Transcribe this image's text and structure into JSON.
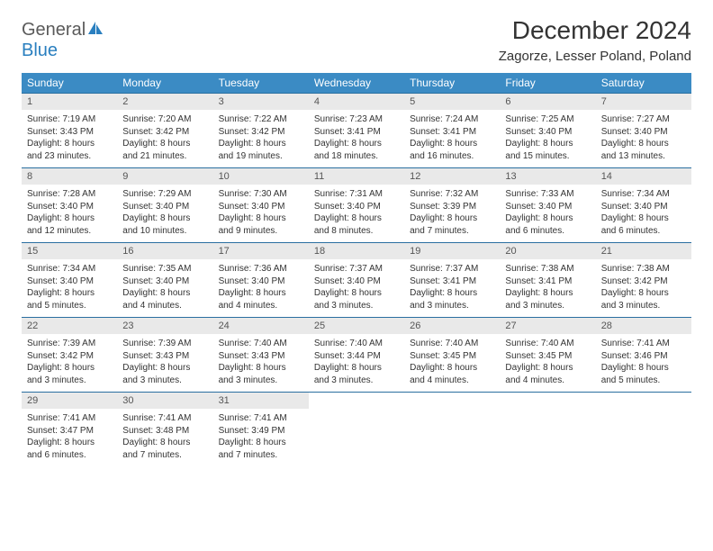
{
  "brand": {
    "part1": "General",
    "part2": "Blue"
  },
  "title": "December 2024",
  "location": "Zagorze, Lesser Poland, Poland",
  "header_bg": "#3b8bc4",
  "daynum_bg": "#e9e9e9",
  "divider_color": "#2a6fa0",
  "day_headers": [
    "Sunday",
    "Monday",
    "Tuesday",
    "Wednesday",
    "Thursday",
    "Friday",
    "Saturday"
  ],
  "weeks": [
    {
      "nums": [
        "1",
        "2",
        "3",
        "4",
        "5",
        "6",
        "7"
      ],
      "cells": [
        {
          "sunrise": "Sunrise: 7:19 AM",
          "sunset": "Sunset: 3:43 PM",
          "day1": "Daylight: 8 hours",
          "day2": "and 23 minutes."
        },
        {
          "sunrise": "Sunrise: 7:20 AM",
          "sunset": "Sunset: 3:42 PM",
          "day1": "Daylight: 8 hours",
          "day2": "and 21 minutes."
        },
        {
          "sunrise": "Sunrise: 7:22 AM",
          "sunset": "Sunset: 3:42 PM",
          "day1": "Daylight: 8 hours",
          "day2": "and 19 minutes."
        },
        {
          "sunrise": "Sunrise: 7:23 AM",
          "sunset": "Sunset: 3:41 PM",
          "day1": "Daylight: 8 hours",
          "day2": "and 18 minutes."
        },
        {
          "sunrise": "Sunrise: 7:24 AM",
          "sunset": "Sunset: 3:41 PM",
          "day1": "Daylight: 8 hours",
          "day2": "and 16 minutes."
        },
        {
          "sunrise": "Sunrise: 7:25 AM",
          "sunset": "Sunset: 3:40 PM",
          "day1": "Daylight: 8 hours",
          "day2": "and 15 minutes."
        },
        {
          "sunrise": "Sunrise: 7:27 AM",
          "sunset": "Sunset: 3:40 PM",
          "day1": "Daylight: 8 hours",
          "day2": "and 13 minutes."
        }
      ]
    },
    {
      "nums": [
        "8",
        "9",
        "10",
        "11",
        "12",
        "13",
        "14"
      ],
      "cells": [
        {
          "sunrise": "Sunrise: 7:28 AM",
          "sunset": "Sunset: 3:40 PM",
          "day1": "Daylight: 8 hours",
          "day2": "and 12 minutes."
        },
        {
          "sunrise": "Sunrise: 7:29 AM",
          "sunset": "Sunset: 3:40 PM",
          "day1": "Daylight: 8 hours",
          "day2": "and 10 minutes."
        },
        {
          "sunrise": "Sunrise: 7:30 AM",
          "sunset": "Sunset: 3:40 PM",
          "day1": "Daylight: 8 hours",
          "day2": "and 9 minutes."
        },
        {
          "sunrise": "Sunrise: 7:31 AM",
          "sunset": "Sunset: 3:40 PM",
          "day1": "Daylight: 8 hours",
          "day2": "and 8 minutes."
        },
        {
          "sunrise": "Sunrise: 7:32 AM",
          "sunset": "Sunset: 3:39 PM",
          "day1": "Daylight: 8 hours",
          "day2": "and 7 minutes."
        },
        {
          "sunrise": "Sunrise: 7:33 AM",
          "sunset": "Sunset: 3:40 PM",
          "day1": "Daylight: 8 hours",
          "day2": "and 6 minutes."
        },
        {
          "sunrise": "Sunrise: 7:34 AM",
          "sunset": "Sunset: 3:40 PM",
          "day1": "Daylight: 8 hours",
          "day2": "and 6 minutes."
        }
      ]
    },
    {
      "nums": [
        "15",
        "16",
        "17",
        "18",
        "19",
        "20",
        "21"
      ],
      "cells": [
        {
          "sunrise": "Sunrise: 7:34 AM",
          "sunset": "Sunset: 3:40 PM",
          "day1": "Daylight: 8 hours",
          "day2": "and 5 minutes."
        },
        {
          "sunrise": "Sunrise: 7:35 AM",
          "sunset": "Sunset: 3:40 PM",
          "day1": "Daylight: 8 hours",
          "day2": "and 4 minutes."
        },
        {
          "sunrise": "Sunrise: 7:36 AM",
          "sunset": "Sunset: 3:40 PM",
          "day1": "Daylight: 8 hours",
          "day2": "and 4 minutes."
        },
        {
          "sunrise": "Sunrise: 7:37 AM",
          "sunset": "Sunset: 3:40 PM",
          "day1": "Daylight: 8 hours",
          "day2": "and 3 minutes."
        },
        {
          "sunrise": "Sunrise: 7:37 AM",
          "sunset": "Sunset: 3:41 PM",
          "day1": "Daylight: 8 hours",
          "day2": "and 3 minutes."
        },
        {
          "sunrise": "Sunrise: 7:38 AM",
          "sunset": "Sunset: 3:41 PM",
          "day1": "Daylight: 8 hours",
          "day2": "and 3 minutes."
        },
        {
          "sunrise": "Sunrise: 7:38 AM",
          "sunset": "Sunset: 3:42 PM",
          "day1": "Daylight: 8 hours",
          "day2": "and 3 minutes."
        }
      ]
    },
    {
      "nums": [
        "22",
        "23",
        "24",
        "25",
        "26",
        "27",
        "28"
      ],
      "cells": [
        {
          "sunrise": "Sunrise: 7:39 AM",
          "sunset": "Sunset: 3:42 PM",
          "day1": "Daylight: 8 hours",
          "day2": "and 3 minutes."
        },
        {
          "sunrise": "Sunrise: 7:39 AM",
          "sunset": "Sunset: 3:43 PM",
          "day1": "Daylight: 8 hours",
          "day2": "and 3 minutes."
        },
        {
          "sunrise": "Sunrise: 7:40 AM",
          "sunset": "Sunset: 3:43 PM",
          "day1": "Daylight: 8 hours",
          "day2": "and 3 minutes."
        },
        {
          "sunrise": "Sunrise: 7:40 AM",
          "sunset": "Sunset: 3:44 PM",
          "day1": "Daylight: 8 hours",
          "day2": "and 3 minutes."
        },
        {
          "sunrise": "Sunrise: 7:40 AM",
          "sunset": "Sunset: 3:45 PM",
          "day1": "Daylight: 8 hours",
          "day2": "and 4 minutes."
        },
        {
          "sunrise": "Sunrise: 7:40 AM",
          "sunset": "Sunset: 3:45 PM",
          "day1": "Daylight: 8 hours",
          "day2": "and 4 minutes."
        },
        {
          "sunrise": "Sunrise: 7:41 AM",
          "sunset": "Sunset: 3:46 PM",
          "day1": "Daylight: 8 hours",
          "day2": "and 5 minutes."
        }
      ]
    },
    {
      "nums": [
        "29",
        "30",
        "31",
        "",
        "",
        "",
        ""
      ],
      "cells": [
        {
          "sunrise": "Sunrise: 7:41 AM",
          "sunset": "Sunset: 3:47 PM",
          "day1": "Daylight: 8 hours",
          "day2": "and 6 minutes."
        },
        {
          "sunrise": "Sunrise: 7:41 AM",
          "sunset": "Sunset: 3:48 PM",
          "day1": "Daylight: 8 hours",
          "day2": "and 7 minutes."
        },
        {
          "sunrise": "Sunrise: 7:41 AM",
          "sunset": "Sunset: 3:49 PM",
          "day1": "Daylight: 8 hours",
          "day2": "and 7 minutes."
        },
        null,
        null,
        null,
        null
      ]
    }
  ]
}
